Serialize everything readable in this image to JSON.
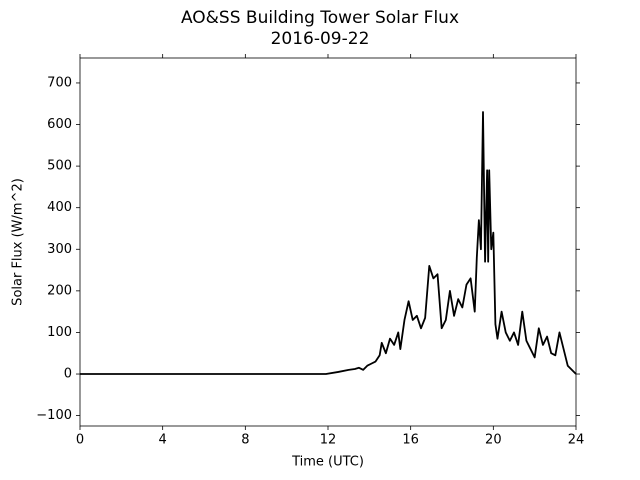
{
  "chart_data": {
    "type": "line",
    "title": "AO&SS Building Tower Solar Flux",
    "subtitle": "2016-09-22",
    "x_label": "Time (UTC)",
    "y_label": "Solar Flux (W/m^2)",
    "xlim": [
      0,
      24
    ],
    "xticks": [
      0,
      4,
      8,
      12,
      16,
      20,
      24
    ],
    "ylim": [
      -125,
      760
    ],
    "yticks": [
      {
        "value": -100,
        "label": "−100"
      },
      0,
      100,
      200,
      300,
      400,
      500,
      600,
      700
    ],
    "series": [
      {
        "color": "#000000",
        "x": [
          0,
          4,
          8,
          11.9,
          12.5,
          13,
          13.3,
          13.5,
          13.7,
          13.9,
          14.1,
          14.3,
          14.5,
          14.6,
          14.8,
          15,
          15.2,
          15.4,
          15.5,
          15.7,
          15.9,
          16.1,
          16.3,
          16.5,
          16.7,
          16.9,
          17.1,
          17.3,
          17.5,
          17.7,
          17.9,
          18.1,
          18.3,
          18.5,
          18.7,
          18.9,
          19.0,
          19.1,
          19.2,
          19.3,
          19.4,
          19.5,
          19.6,
          19.7,
          19.75,
          19.8,
          19.9,
          20.0,
          20.1,
          20.2,
          20.4,
          20.6,
          20.8,
          21.0,
          21.2,
          21.4,
          21.6,
          21.8,
          22.0,
          22.2,
          22.4,
          22.6,
          22.8,
          23.0,
          23.2,
          23.4,
          23.6,
          24
        ],
        "values": [
          0,
          0,
          0,
          0,
          5,
          10,
          12,
          15,
          10,
          20,
          25,
          30,
          45,
          75,
          50,
          85,
          70,
          100,
          60,
          130,
          175,
          130,
          140,
          110,
          135,
          260,
          230,
          240,
          110,
          130,
          200,
          140,
          180,
          160,
          215,
          230,
          190,
          150,
          280,
          370,
          300,
          630,
          270,
          490,
          270,
          490,
          300,
          340,
          120,
          85,
          150,
          100,
          80,
          100,
          70,
          150,
          80,
          60,
          40,
          110,
          70,
          90,
          50,
          45,
          100,
          60,
          20,
          0
        ]
      }
    ]
  }
}
